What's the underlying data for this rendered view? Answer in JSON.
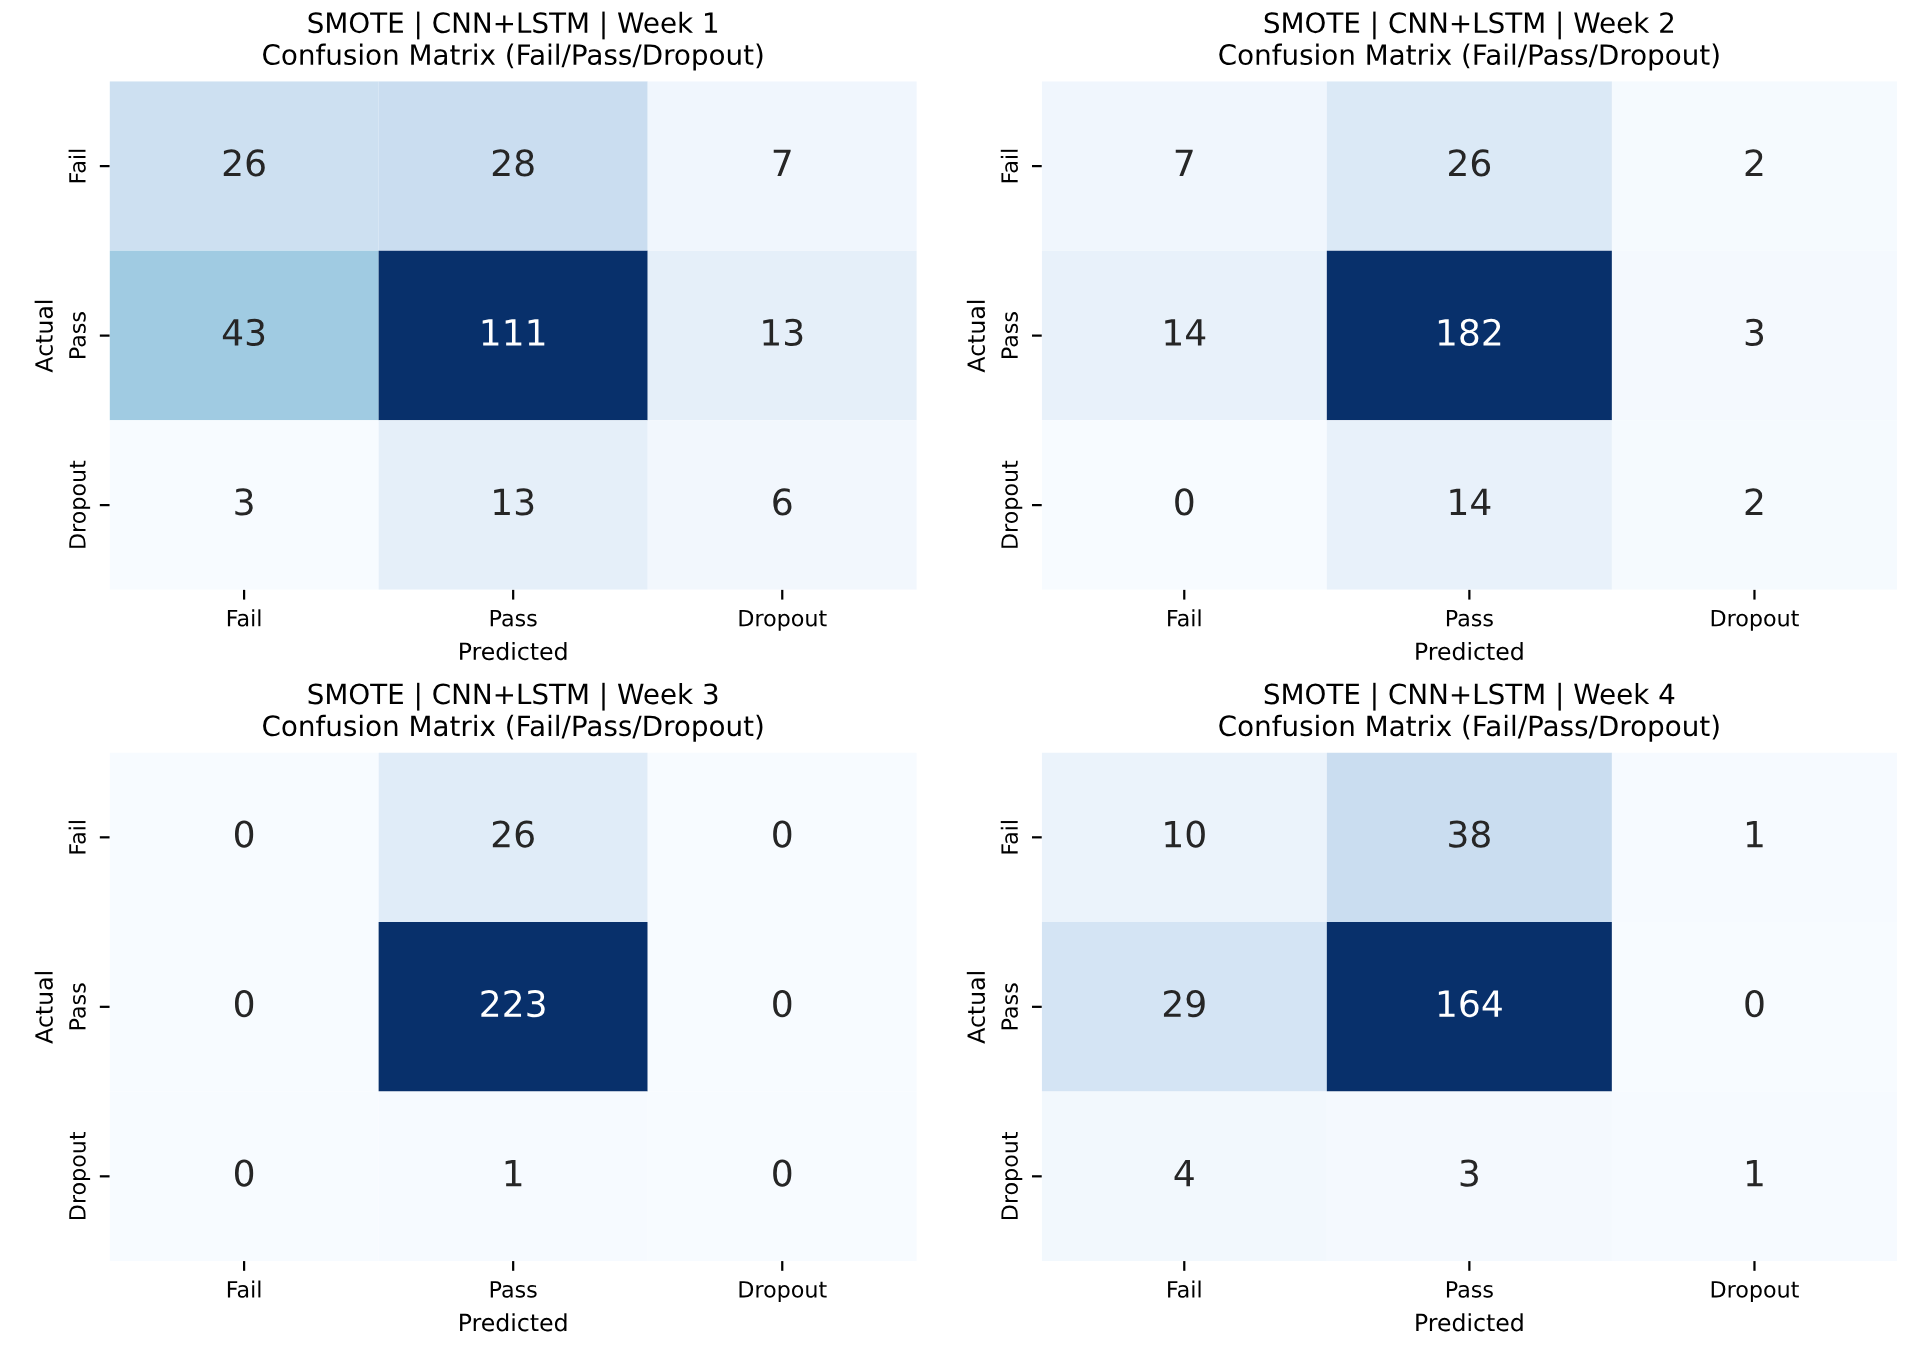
{
  "chart_data": [
    {
      "type": "heatmap",
      "title": "SMOTE | CNN+LSTM | Week 1",
      "subtitle": "Confusion Matrix (Fail/Pass/Dropout)",
      "xlabel": "Predicted",
      "ylabel": "Actual",
      "categories": [
        "Fail",
        "Pass",
        "Dropout"
      ],
      "y_categories": [
        "Fail",
        "Pass",
        "Dropout"
      ],
      "data_labels": true,
      "cells": [
        [
          26,
          28,
          7
        ],
        [
          43,
          111,
          13
        ],
        [
          3,
          13,
          6
        ]
      ]
    },
    {
      "type": "heatmap",
      "title": "SMOTE | CNN+LSTM | Week 2",
      "subtitle": "Confusion Matrix (Fail/Pass/Dropout)",
      "xlabel": "Predicted",
      "ylabel": "Actual",
      "categories": [
        "Fail",
        "Pass",
        "Dropout"
      ],
      "y_categories": [
        "Fail",
        "Pass",
        "Dropout"
      ],
      "data_labels": true,
      "cells": [
        [
          7,
          26,
          2
        ],
        [
          14,
          182,
          3
        ],
        [
          0,
          14,
          2
        ]
      ]
    },
    {
      "type": "heatmap",
      "title": "SMOTE | CNN+LSTM | Week 3",
      "subtitle": "Confusion Matrix (Fail/Pass/Dropout)",
      "xlabel": "Predicted",
      "ylabel": "Actual",
      "categories": [
        "Fail",
        "Pass",
        "Dropout"
      ],
      "y_categories": [
        "Fail",
        "Pass",
        "Dropout"
      ],
      "data_labels": true,
      "cells": [
        [
          0,
          26,
          0
        ],
        [
          0,
          223,
          0
        ],
        [
          0,
          1,
          0
        ]
      ]
    },
    {
      "type": "heatmap",
      "title": "SMOTE | CNN+LSTM | Week 4",
      "subtitle": "Confusion Matrix (Fail/Pass/Dropout)",
      "xlabel": "Predicted",
      "ylabel": "Actual",
      "categories": [
        "Fail",
        "Pass",
        "Dropout"
      ],
      "y_categories": [
        "Fail",
        "Pass",
        "Dropout"
      ],
      "data_labels": true,
      "cells": [
        [
          10,
          38,
          1
        ],
        [
          29,
          164,
          0
        ],
        [
          4,
          3,
          1
        ]
      ]
    }
  ]
}
